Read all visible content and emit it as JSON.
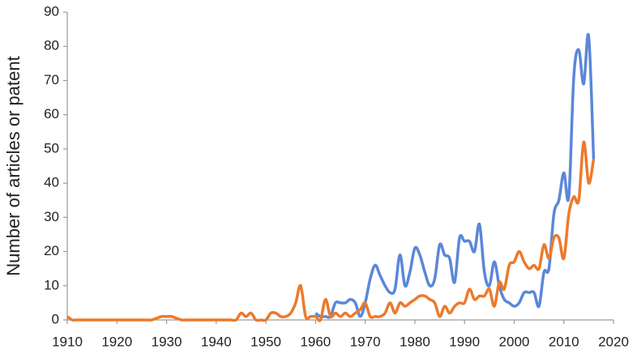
{
  "chart_data": {
    "type": "line",
    "ylabel": "Number of articles or patent",
    "x": [
      1910,
      1911,
      1912,
      1913,
      1914,
      1915,
      1916,
      1917,
      1918,
      1919,
      1920,
      1921,
      1922,
      1923,
      1924,
      1925,
      1926,
      1927,
      1928,
      1929,
      1930,
      1931,
      1932,
      1933,
      1934,
      1935,
      1936,
      1937,
      1938,
      1939,
      1940,
      1941,
      1942,
      1943,
      1944,
      1945,
      1946,
      1947,
      1948,
      1949,
      1950,
      1951,
      1952,
      1953,
      1954,
      1955,
      1956,
      1957,
      1958,
      1959,
      1960,
      1961,
      1962,
      1963,
      1964,
      1965,
      1966,
      1967,
      1968,
      1969,
      1970,
      1971,
      1972,
      1973,
      1974,
      1975,
      1976,
      1977,
      1978,
      1979,
      1980,
      1981,
      1982,
      1983,
      1984,
      1985,
      1986,
      1987,
      1988,
      1989,
      1990,
      1991,
      1992,
      1993,
      1994,
      1995,
      1996,
      1997,
      1998,
      1999,
      2000,
      2001,
      2002,
      2003,
      2004,
      2005,
      2006,
      2007,
      2008,
      2009,
      2010,
      2011,
      2012,
      2013,
      2014,
      2015,
      2016
    ],
    "series": [
      {
        "color": "#5b87d9",
        "values": [
          null,
          null,
          null,
          null,
          null,
          null,
          null,
          null,
          null,
          null,
          null,
          null,
          null,
          null,
          null,
          null,
          null,
          null,
          null,
          null,
          null,
          null,
          null,
          null,
          null,
          null,
          null,
          null,
          null,
          null,
          null,
          null,
          null,
          null,
          null,
          null,
          null,
          null,
          null,
          null,
          null,
          null,
          null,
          null,
          null,
          null,
          null,
          null,
          null,
          null,
          2,
          1,
          1,
          1,
          5,
          5,
          5,
          6,
          5,
          1,
          5,
          12,
          16,
          13,
          10,
          8,
          9,
          19,
          10,
          14,
          21,
          19,
          14,
          10,
          12,
          22,
          19,
          18,
          11,
          24,
          23,
          23,
          20,
          28,
          14,
          10,
          17,
          10,
          6,
          5,
          4,
          5,
          8,
          8,
          8,
          4,
          14,
          15,
          31,
          35,
          43,
          36,
          71,
          79,
          69,
          83,
          47
        ]
      },
      {
        "color": "#ec7a2c",
        "values": [
          1,
          0,
          0,
          0,
          0,
          0,
          0,
          0,
          0,
          0,
          0,
          0,
          0,
          0,
          0,
          0,
          0,
          0,
          0.5,
          1,
          1,
          1,
          0.5,
          0,
          0,
          0,
          0,
          0,
          0,
          0,
          0,
          0,
          0,
          0,
          0,
          2,
          1,
          2,
          0,
          0,
          0,
          2,
          2,
          1,
          1,
          2,
          5,
          10,
          1,
          1,
          1,
          0,
          6,
          1,
          2,
          1,
          2,
          1,
          2,
          3,
          5,
          1,
          1,
          1,
          2,
          5,
          2,
          5,
          4,
          5,
          6,
          7,
          7,
          6,
          5,
          1,
          4,
          2,
          4,
          5,
          5,
          9,
          6,
          7,
          7,
          9,
          4,
          11,
          9,
          16,
          17,
          20,
          17,
          15,
          16,
          15,
          22,
          18,
          24,
          24,
          18,
          31,
          36,
          35,
          52,
          40,
          47
        ]
      }
    ],
    "xlim": [
      1910,
      2020
    ],
    "xticks": [
      1910,
      1920,
      1930,
      1940,
      1950,
      1960,
      1970,
      1980,
      1990,
      2000,
      2010,
      2020
    ],
    "ylim": [
      0,
      90
    ],
    "yticks": [
      0,
      10,
      20,
      30,
      40,
      50,
      60,
      70,
      80,
      90
    ]
  }
}
